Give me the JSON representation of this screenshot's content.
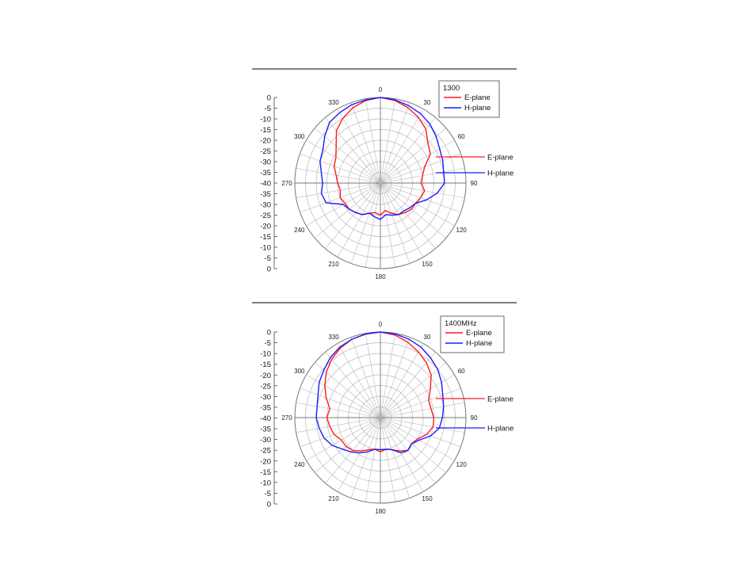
{
  "chart_data": [
    {
      "type": "polar",
      "title": "1300",
      "r_scale_labels": [
        "0",
        "-5",
        "-10",
        "-15",
        "-20",
        "-25",
        "-30",
        "-35",
        "-40",
        "-35",
        "-30",
        "-25",
        "-20",
        "-15",
        "-10",
        "-5",
        "0"
      ],
      "angle_tick_labels": [
        "0",
        "30",
        "60",
        "90",
        "120",
        "150",
        "180",
        "210",
        "240",
        "270",
        "300",
        "330"
      ],
      "r_range_db": [
        -40,
        0
      ],
      "grid": true,
      "legend": {
        "title": "1300",
        "entries": [
          "E-plane",
          "H-plane"
        ],
        "placement": "top-right"
      },
      "annotations": [
        "E-plane",
        "H-plane"
      ],
      "angles_deg": [
        0,
        10,
        20,
        30,
        40,
        50,
        60,
        70,
        80,
        90,
        100,
        110,
        120,
        130,
        140,
        150,
        160,
        170,
        180,
        190,
        200,
        210,
        220,
        230,
        240,
        250,
        260,
        270,
        280,
        290,
        300,
        310,
        320,
        330,
        340,
        350
      ],
      "series": [
        {
          "name": "E-plane",
          "color": "#ff1a1a",
          "values": [
            0,
            -0.8,
            -2.5,
            -4.5,
            -7,
            -11,
            -13,
            -18,
            -20,
            -21,
            -19,
            -20,
            -21,
            -21,
            -22,
            -23,
            -25,
            -27,
            -25,
            -26,
            -25,
            -23,
            -22,
            -21,
            -21,
            -20,
            -21,
            -20,
            -19,
            -17,
            -16,
            -13,
            -8,
            -5,
            -2.5,
            -0.8
          ]
        },
        {
          "name": "H-plane",
          "color": "#1a1aff",
          "values": [
            0,
            -0.5,
            -1.5,
            -2.5,
            -4,
            -6,
            -8,
            -9,
            -10,
            -10,
            -13,
            -17,
            -21,
            -22,
            -23,
            -23,
            -24,
            -25,
            -23,
            -24,
            -25,
            -23,
            -22,
            -21,
            -20,
            -13,
            -12,
            -13,
            -12,
            -10,
            -9,
            -6,
            -3,
            -2,
            -1,
            -0.5
          ]
        }
      ]
    },
    {
      "type": "polar",
      "title": "1400MHz",
      "r_scale_labels": [
        "0",
        "-5",
        "-10",
        "-15",
        "-20",
        "-25",
        "-30",
        "-35",
        "-40",
        "-35",
        "-30",
        "-25",
        "-20",
        "-15",
        "-10",
        "-5",
        "0"
      ],
      "angle_tick_labels": [
        "0",
        "30",
        "60",
        "90",
        "120",
        "150",
        "180",
        "210",
        "240",
        "270",
        "300",
        "330"
      ],
      "r_range_db": [
        -40,
        0
      ],
      "grid": true,
      "legend": {
        "title": "1400MHz",
        "entries": [
          "E-plane",
          "H-plane"
        ],
        "placement": "top-right"
      },
      "annotations": [
        "E-plane",
        "H-plane"
      ],
      "angles_deg": [
        0,
        10,
        20,
        30,
        40,
        50,
        60,
        70,
        80,
        90,
        100,
        110,
        120,
        130,
        140,
        150,
        160,
        170,
        180,
        190,
        200,
        210,
        220,
        230,
        240,
        250,
        260,
        270,
        280,
        290,
        300,
        310,
        320,
        330,
        340,
        350
      ],
      "series": [
        {
          "name": "E-plane",
          "color": "#ff1a1a",
          "values": [
            0,
            -0.8,
            -2.5,
            -4.5,
            -6.5,
            -9,
            -13,
            -16,
            -16,
            -15,
            -15,
            -17,
            -20,
            -21,
            -20,
            -22,
            -24,
            -25,
            -24,
            -25,
            -24,
            -22,
            -20,
            -19,
            -19,
            -17,
            -16,
            -15,
            -16,
            -13,
            -10,
            -7,
            -4.5,
            -2.5,
            -1,
            -0.4
          ]
        },
        {
          "name": "H-plane",
          "color": "#1a1aff",
          "values": [
            0,
            -0.3,
            -1,
            -2,
            -3.5,
            -5,
            -7,
            -9,
            -10,
            -11,
            -12,
            -15,
            -19,
            -21,
            -20,
            -21,
            -24,
            -25,
            -25,
            -25,
            -23,
            -21,
            -19,
            -17,
            -14,
            -12,
            -11,
            -10,
            -10,
            -9,
            -7,
            -5.5,
            -3.5,
            -2,
            -1,
            -0.3
          ]
        }
      ]
    }
  ]
}
